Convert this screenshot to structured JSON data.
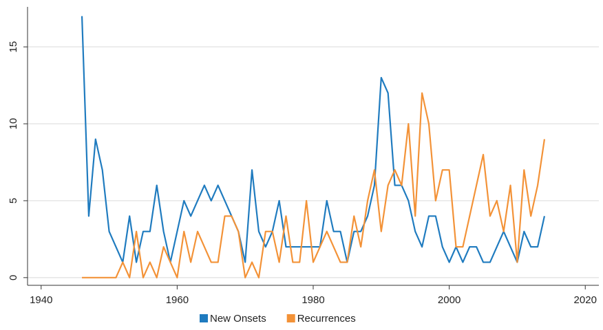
{
  "chart_data": {
    "type": "line",
    "x": [
      1946,
      1947,
      1948,
      1949,
      1950,
      1951,
      1952,
      1953,
      1954,
      1955,
      1956,
      1957,
      1958,
      1959,
      1960,
      1961,
      1962,
      1963,
      1964,
      1965,
      1966,
      1967,
      1968,
      1969,
      1970,
      1971,
      1972,
      1973,
      1974,
      1975,
      1976,
      1977,
      1978,
      1979,
      1980,
      1981,
      1982,
      1983,
      1984,
      1985,
      1986,
      1987,
      1988,
      1989,
      1990,
      1991,
      1992,
      1993,
      1994,
      1995,
      1996,
      1997,
      1998,
      1999,
      2000,
      2001,
      2002,
      2003,
      2004,
      2005,
      2006,
      2007,
      2008,
      2009,
      2010,
      2011,
      2012,
      2013,
      2014
    ],
    "series": [
      {
        "name": "New Onsets",
        "color": "#1f7bbf",
        "values": [
          17,
          4,
          9,
          7,
          3,
          2,
          1,
          4,
          1,
          3,
          3,
          6,
          3,
          1,
          3,
          5,
          4,
          5,
          6,
          5,
          6,
          5,
          4,
          3,
          1,
          7,
          3,
          2,
          3,
          5,
          2,
          2,
          2,
          2,
          2,
          2,
          5,
          3,
          3,
          1,
          3,
          3,
          4,
          6,
          13,
          12,
          6,
          6,
          5,
          3,
          2,
          4,
          4,
          2,
          1,
          2,
          1,
          2,
          2,
          1,
          1,
          2,
          3,
          2,
          1,
          3,
          2,
          2,
          4
        ]
      },
      {
        "name": "Recurrences",
        "color": "#f39237",
        "values": [
          0,
          0,
          0,
          0,
          0,
          0,
          1,
          0,
          3,
          0,
          1,
          0,
          2,
          1,
          0,
          3,
          1,
          3,
          2,
          1,
          1,
          4,
          4,
          3,
          0,
          1,
          0,
          3,
          3,
          1,
          4,
          1,
          1,
          5,
          1,
          2,
          3,
          2,
          1,
          1,
          4,
          2,
          5,
          7,
          3,
          6,
          7,
          6,
          10,
          4,
          12,
          10,
          5,
          7,
          7,
          2,
          2,
          4,
          6,
          8,
          4,
          5,
          3,
          6,
          1,
          7,
          4,
          6,
          9
        ]
      }
    ],
    "xlim": [
      1938,
      2022
    ],
    "xticks": [
      1940,
      1960,
      1980,
      2000,
      2020
    ],
    "ylim": [
      -0.5,
      17.6
    ],
    "yticks": [
      0,
      5,
      10,
      15
    ],
    "grid": true,
    "legend": "bottom"
  }
}
